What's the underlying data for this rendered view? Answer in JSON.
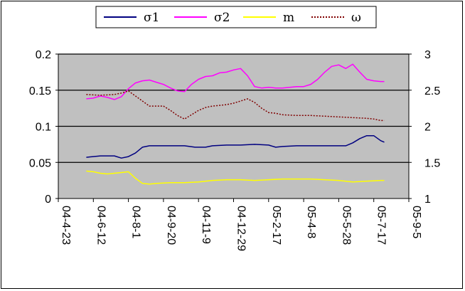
{
  "chart_data": {
    "type": "line",
    "plot_background": "#c0c0c0",
    "grid": true,
    "legend_position": "top",
    "left_axis": {
      "ylim": [
        0,
        0.2
      ],
      "ticks": [
        "0",
        "0.05",
        "0.1",
        "0.15",
        "0.2"
      ]
    },
    "right_axis": {
      "ylim": [
        1,
        3
      ],
      "ticks": [
        "1",
        "1.5",
        "2",
        "2.5",
        "3"
      ]
    },
    "x_ticks": [
      "04-4-23",
      "04-6-12",
      "04-8-1",
      "04-9-20",
      "04-11-9",
      "04-12-29",
      "05-2-17",
      "05-4-8",
      "05-5-28",
      "05-7-17",
      "05-9-5"
    ],
    "x_tick_index": [
      0,
      50,
      100,
      150,
      200,
      250,
      300,
      350,
      400,
      450,
      500
    ],
    "series": [
      {
        "name": "σ1",
        "axis": "left",
        "color": "#000080",
        "dash": "",
        "x": [
          40,
          60,
          80,
          90,
          100,
          110,
          120,
          130,
          140,
          160,
          180,
          195,
          200,
          210,
          220,
          240,
          260,
          280,
          300,
          310,
          320,
          340,
          360,
          380,
          390,
          400,
          410,
          420,
          430,
          440,
          450,
          460,
          465
        ],
        "y": [
          0.057,
          0.059,
          0.059,
          0.056,
          0.058,
          0.063,
          0.071,
          0.073,
          0.073,
          0.073,
          0.073,
          0.071,
          0.071,
          0.071,
          0.073,
          0.074,
          0.074,
          0.075,
          0.074,
          0.071,
          0.072,
          0.073,
          0.073,
          0.073,
          0.073,
          0.073,
          0.073,
          0.077,
          0.083,
          0.087,
          0.087,
          0.08,
          0.078
        ]
      },
      {
        "name": "σ2",
        "axis": "left",
        "color": "#ff00ff",
        "dash": "",
        "x": [
          40,
          50,
          60,
          70,
          80,
          90,
          100,
          110,
          120,
          130,
          140,
          150,
          160,
          170,
          180,
          190,
          200,
          210,
          220,
          230,
          240,
          250,
          260,
          270,
          280,
          290,
          300,
          310,
          320,
          330,
          340,
          350,
          360,
          370,
          380,
          390,
          400,
          410,
          420,
          430,
          440,
          450,
          460,
          465
        ],
        "y": [
          0.138,
          0.139,
          0.142,
          0.14,
          0.137,
          0.141,
          0.152,
          0.16,
          0.163,
          0.164,
          0.161,
          0.158,
          0.153,
          0.149,
          0.148,
          0.158,
          0.165,
          0.169,
          0.17,
          0.174,
          0.175,
          0.178,
          0.18,
          0.17,
          0.155,
          0.153,
          0.154,
          0.153,
          0.153,
          0.154,
          0.155,
          0.155,
          0.158,
          0.165,
          0.175,
          0.183,
          0.185,
          0.18,
          0.186,
          0.175,
          0.165,
          0.163,
          0.162,
          0.162
        ]
      },
      {
        "name": "m",
        "axis": "left",
        "color": "#ffff00",
        "dash": "",
        "x": [
          40,
          50,
          60,
          70,
          80,
          90,
          100,
          110,
          120,
          130,
          140,
          160,
          180,
          200,
          220,
          240,
          260,
          280,
          300,
          320,
          340,
          360,
          380,
          400,
          420,
          440,
          460,
          465
        ],
        "y": [
          0.038,
          0.037,
          0.035,
          0.034,
          0.035,
          0.036,
          0.037,
          0.028,
          0.021,
          0.02,
          0.021,
          0.022,
          0.022,
          0.023,
          0.025,
          0.026,
          0.026,
          0.025,
          0.026,
          0.027,
          0.027,
          0.027,
          0.026,
          0.025,
          0.023,
          0.024,
          0.025,
          0.025
        ]
      },
      {
        "name": "ω",
        "axis": "right",
        "color": "#800000",
        "dash": "2,2",
        "x": [
          40,
          60,
          80,
          90,
          100,
          110,
          120,
          130,
          140,
          150,
          160,
          170,
          180,
          190,
          200,
          210,
          220,
          230,
          240,
          250,
          260,
          270,
          280,
          290,
          300,
          310,
          320,
          340,
          360,
          380,
          400,
          420,
          440,
          450,
          460,
          465
        ],
        "y": [
          2.44,
          2.43,
          2.44,
          2.46,
          2.49,
          2.42,
          2.35,
          2.28,
          2.28,
          2.28,
          2.22,
          2.15,
          2.1,
          2.16,
          2.22,
          2.26,
          2.28,
          2.29,
          2.3,
          2.32,
          2.35,
          2.38,
          2.33,
          2.25,
          2.19,
          2.18,
          2.16,
          2.15,
          2.15,
          2.14,
          2.13,
          2.12,
          2.11,
          2.1,
          2.08,
          2.08
        ]
      }
    ]
  }
}
